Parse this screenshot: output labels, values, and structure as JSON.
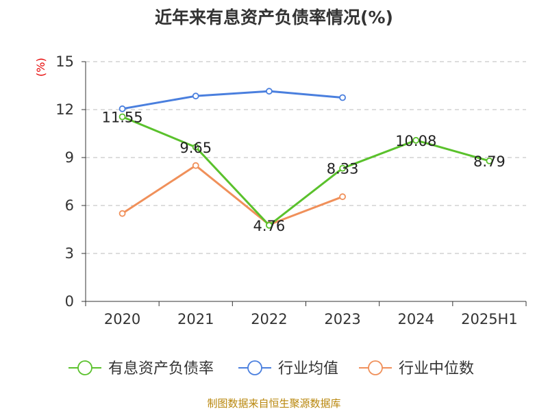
{
  "title": "近年来有息资产负债率情况(%)",
  "unit": "(%)",
  "source": "制图数据来自恒生聚源数据库",
  "colors": {
    "company": "#5ac12c",
    "industry_avg": "#4a7fde",
    "industry_median": "#f0905a",
    "grid": "#bbbbbb",
    "axis": "#333333"
  },
  "chart_data": {
    "type": "line",
    "title": "近年来有息资产负债率情况(%)",
    "ylabel": "(%)",
    "xlabel": "",
    "categories": [
      "2020",
      "2021",
      "2022",
      "2023",
      "2024",
      "2025H1"
    ],
    "ylim": [
      0,
      15
    ],
    "yticks": [
      0,
      3,
      6,
      9,
      12,
      15
    ],
    "grid": "horizontal dashed",
    "legend_position": "bottom",
    "series": [
      {
        "name": "有息资产负债率",
        "values": [
          11.55,
          9.65,
          4.76,
          8.33,
          10.08,
          8.79
        ],
        "labels": [
          "11.55",
          "9.65",
          "4.76",
          "8.33",
          "10.08",
          "8.79"
        ]
      },
      {
        "name": "行业均值",
        "values": [
          12.05,
          12.85,
          13.15,
          12.75,
          null,
          null
        ]
      },
      {
        "name": "行业中位数",
        "values": [
          5.5,
          8.5,
          4.8,
          6.55,
          null,
          null
        ]
      }
    ]
  }
}
